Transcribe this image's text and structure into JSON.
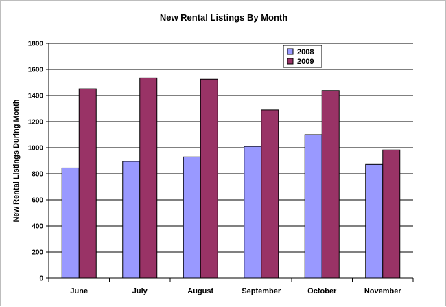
{
  "colors": {
    "series_2008": "#9999ff",
    "series_2009": "#993366",
    "gridline": "#000000",
    "frame": "#bdbdbd"
  },
  "chart_data": {
    "type": "bar",
    "title": "New Rental Listings By Month",
    "xlabel": "",
    "ylabel": "New Rental Listings During Month",
    "categories": [
      "June",
      "July",
      "August",
      "September",
      "October",
      "November"
    ],
    "series": [
      {
        "name": "2008",
        "values": [
          845,
          895,
          930,
          1010,
          1100,
          872
        ]
      },
      {
        "name": "2009",
        "values": [
          1452,
          1535,
          1525,
          1290,
          1438,
          983
        ]
      }
    ],
    "ylim": [
      0,
      1800
    ],
    "yticks": [
      0,
      200,
      400,
      600,
      800,
      1000,
      1200,
      1400,
      1600,
      1800
    ],
    "grid": true,
    "legend_position": "top-right"
  }
}
